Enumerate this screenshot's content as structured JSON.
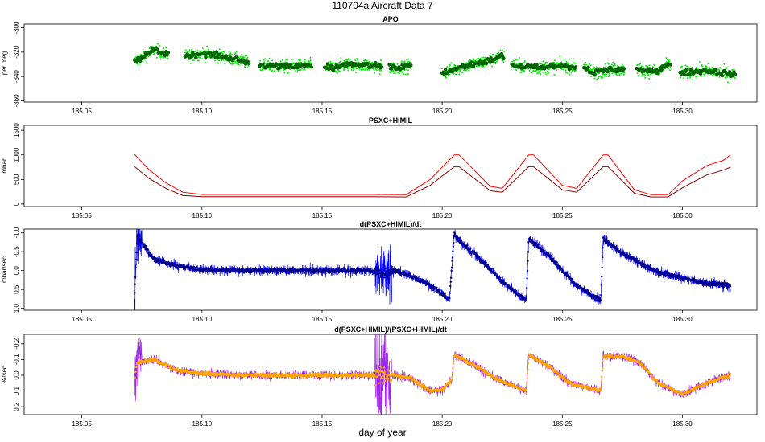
{
  "title": "110704a   Aircraft Data 7",
  "xlabel": "day of year",
  "colors": {
    "apo_light": "#00ee00",
    "apo_dark": "#006400",
    "psxc_upper": "#ff0000",
    "psxc_lower": "#8b0000",
    "deriv_light": "#0000ff",
    "deriv_dark": "#00008b",
    "rel_light": "#a020f0",
    "rel_dark": "#ffa500"
  },
  "chart_data": [
    {
      "type": "scatter",
      "title": "APO",
      "ylabel": "per meg",
      "xlim": [
        185.026,
        185.331
      ],
      "ylim": [
        -361,
        -297
      ],
      "y_inverted": false,
      "xticks": [
        "185.05",
        "185.10",
        "185.15",
        "185.20",
        "185.25",
        "185.30"
      ],
      "yticks": [
        "-300",
        "-320",
        "-340",
        "-360"
      ],
      "x": [
        185.072,
        185.08,
        185.085,
        185.094,
        185.1,
        185.11,
        185.118,
        185.125,
        185.135,
        185.145,
        185.155,
        185.16,
        185.17,
        185.18,
        185.187,
        185.2,
        185.21,
        185.22,
        185.225,
        185.23,
        185.24,
        185.25,
        185.26,
        185.263,
        185.27,
        185.28,
        185.29,
        185.294,
        185.3,
        185.31,
        185.32
      ],
      "y": [
        -328,
        -318,
        -322,
        -323,
        -321,
        -324,
        -328,
        -331,
        -332,
        -331,
        -333,
        -330,
        -331,
        -333,
        -331,
        -337,
        -331,
        -327,
        -323,
        -331,
        -333,
        -331,
        -333,
        -337,
        -334,
        -334,
        -336,
        -330,
        -337,
        -335,
        -338
      ],
      "series": [
        {
          "name": "",
          "values": []
        }
      ]
    },
    {
      "type": "line",
      "title": "PSXC+HIMIL",
      "ylabel": "mbar",
      "xlim": [
        185.026,
        185.331
      ],
      "ylim": [
        -50,
        1600
      ],
      "y_inverted": false,
      "xticks": [
        "185.05",
        "185.10",
        "185.15",
        "185.20",
        "185.25",
        "185.30"
      ],
      "yticks": [
        "0",
        "500",
        "1000",
        "1500"
      ],
      "x": [
        185.072,
        185.078,
        185.085,
        185.092,
        185.1,
        185.12,
        185.15,
        185.17,
        185.185,
        185.195,
        185.205,
        185.207,
        185.22,
        185.225,
        185.236,
        185.238,
        185.25,
        185.256,
        185.267,
        185.269,
        185.28,
        185.287,
        185.294,
        185.3,
        185.31,
        185.317,
        185.32
      ],
      "series": [
        {
          "name": "",
          "values": [
            1010,
            700,
            430,
            240,
            195,
            195,
            195,
            195,
            190,
            500,
            1000,
            1000,
            360,
            320,
            1000,
            1000,
            380,
            320,
            1000,
            1000,
            290,
            190,
            190,
            470,
            780,
            890,
            1000
          ]
        },
        {
          "name": "",
          "values": [
            760,
            520,
            320,
            175,
            150,
            150,
            150,
            150,
            145,
            380,
            760,
            760,
            270,
            240,
            760,
            760,
            290,
            240,
            760,
            760,
            220,
            145,
            145,
            330,
            590,
            690,
            750
          ]
        }
      ]
    },
    {
      "type": "line",
      "title": "d(PSXC+HIMIL)/dt",
      "ylabel": "mbar/sec",
      "xlim": [
        185.026,
        185.331
      ],
      "ylim": [
        1.05,
        -1.1
      ],
      "y_inverted": true,
      "xticks": [
        "185.05",
        "185.10",
        "185.15",
        "185.20",
        "185.25",
        "185.30"
      ],
      "yticks": [
        "-1.0",
        "-0.5",
        "0.0",
        "0.5",
        "1.0"
      ],
      "x": [
        185.072,
        185.073,
        185.08,
        185.09,
        185.1,
        185.12,
        185.15,
        185.17,
        185.175,
        185.18,
        185.187,
        185.195,
        185.2,
        185.203,
        185.205,
        185.206,
        185.215,
        185.225,
        185.235,
        185.236,
        185.245,
        185.255,
        185.266,
        185.267,
        185.275,
        185.285,
        185.29,
        185.3,
        185.31,
        185.32
      ],
      "series": [
        {
          "name": "",
          "values": [
            0.6,
            -0.9,
            -0.3,
            -0.12,
            -0.02,
            0.0,
            0.0,
            0.0,
            0.1,
            0.0,
            0.15,
            0.4,
            0.6,
            0.8,
            -1.0,
            -0.85,
            -0.35,
            0.3,
            0.8,
            -0.85,
            -0.35,
            0.35,
            0.8,
            -0.85,
            -0.45,
            -0.1,
            0.05,
            0.2,
            0.35,
            0.4
          ]
        }
      ]
    },
    {
      "type": "line",
      "title": "d(PSXC+HIMIL)/(PSXC+HIMIL)/dt",
      "ylabel": "%/sec",
      "xlim": [
        185.026,
        185.331
      ],
      "ylim": [
        0.25,
        -0.26
      ],
      "y_inverted": true,
      "xticks": [
        "185.05",
        "185.10",
        "185.15",
        "185.20",
        "185.25",
        "185.30"
      ],
      "yticks": [
        "-0.2",
        "-0.1",
        "0.0",
        "0.1",
        "0.2"
      ],
      "x": [
        185.072,
        185.073,
        185.08,
        185.09,
        185.1,
        185.12,
        185.15,
        185.17,
        185.176,
        185.18,
        185.187,
        185.195,
        185.2,
        185.204,
        185.205,
        185.215,
        185.222,
        185.235,
        185.236,
        185.245,
        185.253,
        185.266,
        185.267,
        185.275,
        185.282,
        185.29,
        185.3,
        185.31,
        185.32
      ],
      "series": [
        {
          "name": "",
          "values": [
            0.02,
            -0.08,
            -0.1,
            -0.03,
            -0.01,
            0.0,
            0.0,
            0.0,
            0.0,
            0.0,
            0.02,
            0.1,
            0.09,
            0.03,
            -0.13,
            -0.05,
            0.02,
            0.1,
            -0.13,
            -0.05,
            0.05,
            0.1,
            -0.12,
            -0.12,
            -0.08,
            0.05,
            0.12,
            0.05,
            0.0
          ]
        }
      ]
    }
  ]
}
